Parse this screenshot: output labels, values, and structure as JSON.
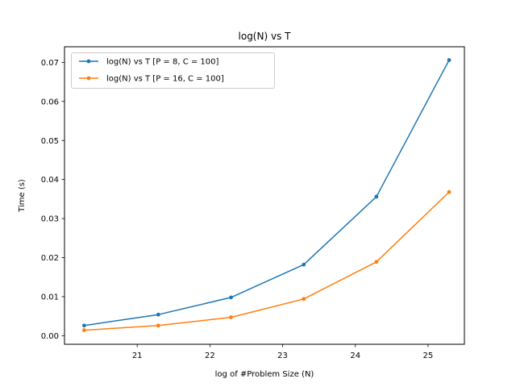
{
  "chart_data": {
    "type": "line",
    "title": "log(N) vs T",
    "xlabel": "log of #Problem Size (N)",
    "ylabel": "Time (s)",
    "xlim": [
      20.0,
      25.5
    ],
    "ylim": [
      -0.0022,
      0.074
    ],
    "xticks": [
      21,
      22,
      23,
      24,
      25
    ],
    "yticks": [
      0.0,
      0.01,
      0.02,
      0.03,
      0.04,
      0.05,
      0.06,
      0.07
    ],
    "xtick_labels": [
      "21",
      "22",
      "23",
      "24",
      "25"
    ],
    "ytick_labels": [
      "0.00",
      "0.01",
      "0.02",
      "0.03",
      "0.04",
      "0.05",
      "0.06",
      "0.07"
    ],
    "grid": false,
    "legend_position": "top-left",
    "x": [
      20.27,
      21.29,
      22.29,
      23.29,
      24.29,
      25.29
    ],
    "series": [
      {
        "name": "log(N) vs T [P = 8, C = 100]",
        "color": "#1f77b4",
        "marker": "circle",
        "values": [
          0.0026,
          0.0054,
          0.0098,
          0.0182,
          0.0356,
          0.0706
        ]
      },
      {
        "name": "log(N) vs T [P = 16, C = 100]",
        "color": "#ff7f0e",
        "marker": "circle",
        "values": [
          0.0014,
          0.0026,
          0.0047,
          0.0094,
          0.0189,
          0.0368
        ]
      }
    ]
  }
}
